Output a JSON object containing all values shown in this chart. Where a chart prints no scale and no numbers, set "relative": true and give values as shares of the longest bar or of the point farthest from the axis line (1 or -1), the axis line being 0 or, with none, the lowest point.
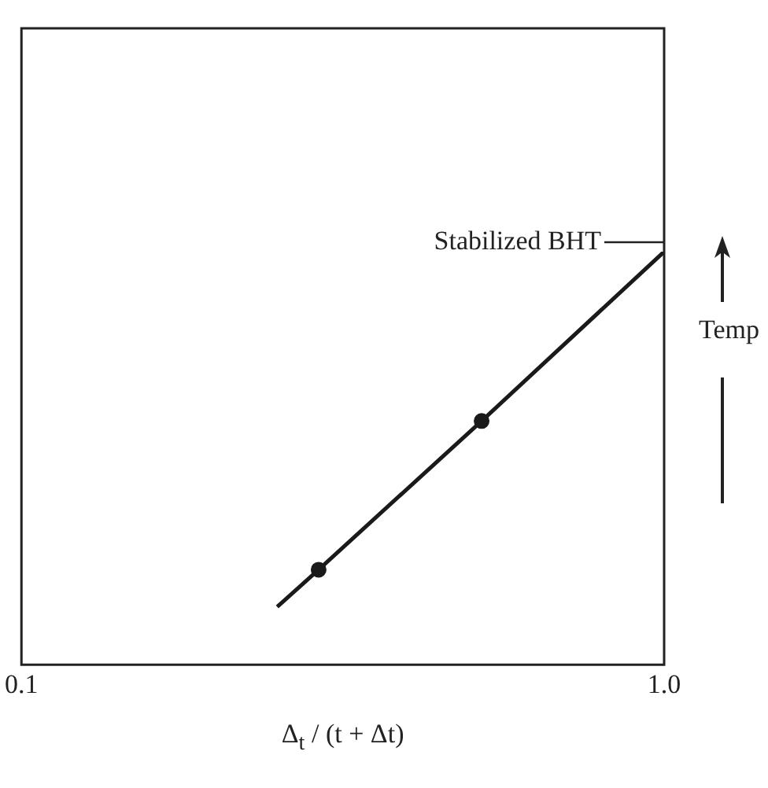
{
  "chart_data": {
    "type": "line",
    "relative": true,
    "log": "x",
    "grid": false,
    "legend": false,
    "tick_labels": "x",
    "xlabel": "Δ$_{t}$ / (t + Δt)",
    "ylabel": "Temp",
    "xlim": [
      0.1,
      1
    ],
    "xticks": [
      0.1,
      {
        "value": 1,
        "label": "1.0"
      }
    ],
    "series": [
      {
        "color": "#1a1a1a",
        "marker": "none",
        "x": [
          0.25,
          0.29,
          0.52,
          1
        ],
        "values": [
          0.14,
          0.23,
          0.59,
          1
        ]
      },
      {
        "type": "scatter",
        "color": "#1a1a1a",
        "marker": "circle",
        "x": [
          0.29,
          0.52
        ],
        "values": [
          0.23,
          0.59
        ]
      }
    ],
    "annotations": [
      {
        "text": "Stabilized BHT",
        "x": 1,
        "y": 1
      }
    ]
  }
}
